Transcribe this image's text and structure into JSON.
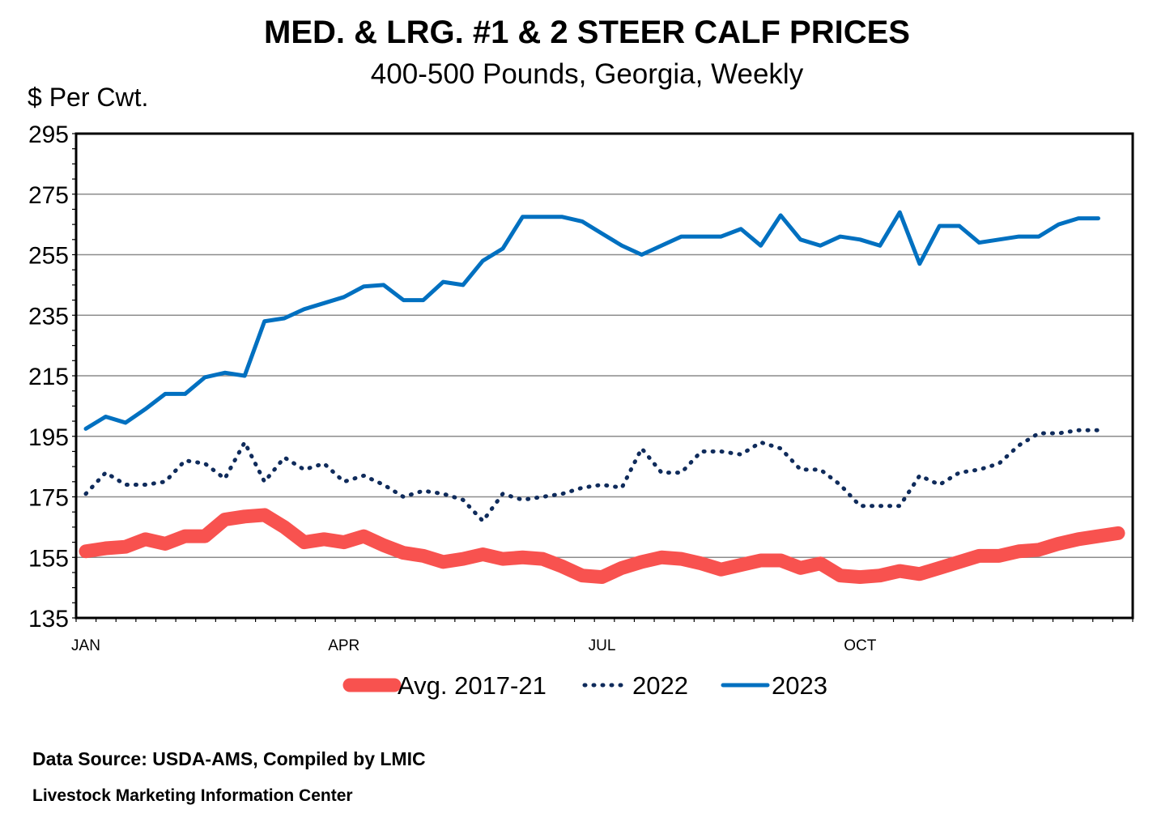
{
  "chart_data": {
    "type": "line",
    "title": "MED. & LRG. #1 & 2 STEER CALF PRICES",
    "subtitle": "400-500 Pounds, Georgia, Weekly",
    "ylabel": "$ Per Cwt.",
    "ylim": [
      135,
      295
    ],
    "yticks": [
      135,
      155,
      175,
      195,
      215,
      235,
      255,
      275,
      295
    ],
    "xlim": [
      1,
      53
    ],
    "xtick_labels": [
      {
        "label": "JAN",
        "week": 1
      },
      {
        "label": "APR",
        "week": 14
      },
      {
        "label": "JUL",
        "week": 27
      },
      {
        "label": "OCT",
        "week": 40
      }
    ],
    "grid": true,
    "legend": "bottom",
    "series": [
      {
        "name": "Avg. 2017-21",
        "style": "thick",
        "color": "#f8524f",
        "x": [
          1,
          2,
          3,
          4,
          5,
          6,
          7,
          8,
          9,
          10,
          11,
          12,
          13,
          14,
          15,
          16,
          17,
          18,
          19,
          20,
          21,
          22,
          23,
          24,
          25,
          26,
          27,
          28,
          29,
          30,
          31,
          32,
          33,
          34,
          35,
          36,
          37,
          38,
          39,
          40,
          41,
          42,
          43,
          44,
          45,
          46,
          47,
          48,
          49,
          50,
          51,
          52,
          53
        ],
        "values": [
          157,
          158,
          158.5,
          161,
          159.5,
          162,
          162,
          167.5,
          168.5,
          169,
          165,
          160,
          161,
          160,
          162,
          159,
          156.5,
          155.5,
          153.5,
          154.5,
          156,
          154.5,
          155,
          154.5,
          152,
          149,
          148.5,
          151.5,
          153.5,
          155,
          154.5,
          153,
          151,
          152.5,
          154,
          154,
          151.5,
          153,
          149,
          148.5,
          149,
          150.5,
          149.5,
          151.5,
          153.5,
          155.5,
          155.5,
          157,
          157.5,
          159.5,
          161,
          162,
          163
        ]
      },
      {
        "name": "2022",
        "style": "dotted",
        "color": "#0f2b5b",
        "x": [
          1,
          2,
          3,
          4,
          5,
          6,
          7,
          8,
          9,
          10,
          11,
          12,
          13,
          14,
          15,
          16,
          17,
          18,
          19,
          20,
          21,
          22,
          23,
          24,
          25,
          26,
          27,
          28,
          29,
          30,
          31,
          32,
          33,
          34,
          35,
          36,
          37,
          38,
          39,
          40,
          41,
          42,
          43,
          44,
          45,
          46,
          47,
          48,
          49,
          50,
          51,
          52
        ],
        "values": [
          176,
          183,
          179,
          179,
          180,
          187,
          186,
          181,
          193,
          180,
          188,
          184,
          186,
          180,
          182,
          179,
          175,
          177,
          176,
          174,
          167,
          176,
          174,
          175,
          176,
          178,
          179,
          178,
          191,
          183,
          183,
          190,
          190,
          189,
          193,
          191,
          184,
          184,
          179,
          172,
          172,
          172,
          182,
          179,
          183,
          184,
          186,
          192,
          196,
          196,
          197,
          197
        ]
      },
      {
        "name": "2023",
        "style": "solid",
        "color": "#0070c0",
        "x": [
          1,
          2,
          3,
          4,
          5,
          6,
          7,
          8,
          9,
          10,
          11,
          12,
          13,
          14,
          15,
          16,
          17,
          18,
          19,
          20,
          21,
          22,
          23,
          24,
          25,
          26,
          27,
          28,
          29,
          30,
          31,
          32,
          33,
          34,
          35,
          36,
          37,
          38,
          39,
          40,
          41,
          42,
          43,
          44,
          45,
          46,
          47,
          48,
          49,
          50,
          51,
          52
        ],
        "values": [
          197.5,
          201.5,
          199.5,
          204,
          209,
          209,
          214.5,
          216,
          215,
          233,
          234,
          237,
          239,
          241,
          244.5,
          245,
          240,
          240,
          246,
          245,
          253,
          257,
          267.5,
          267.5,
          267.5,
          266,
          262,
          258,
          255,
          258,
          261,
          261,
          261,
          263.5,
          258,
          268,
          260,
          258,
          261,
          260,
          258,
          269,
          252,
          264.5,
          264.5,
          259,
          260,
          261,
          261,
          265,
          267,
          267
        ]
      }
    ]
  },
  "footer": {
    "source": "Data Source:  USDA-AMS, Compiled by LMIC",
    "org": "Livestock Marketing Information Center"
  }
}
